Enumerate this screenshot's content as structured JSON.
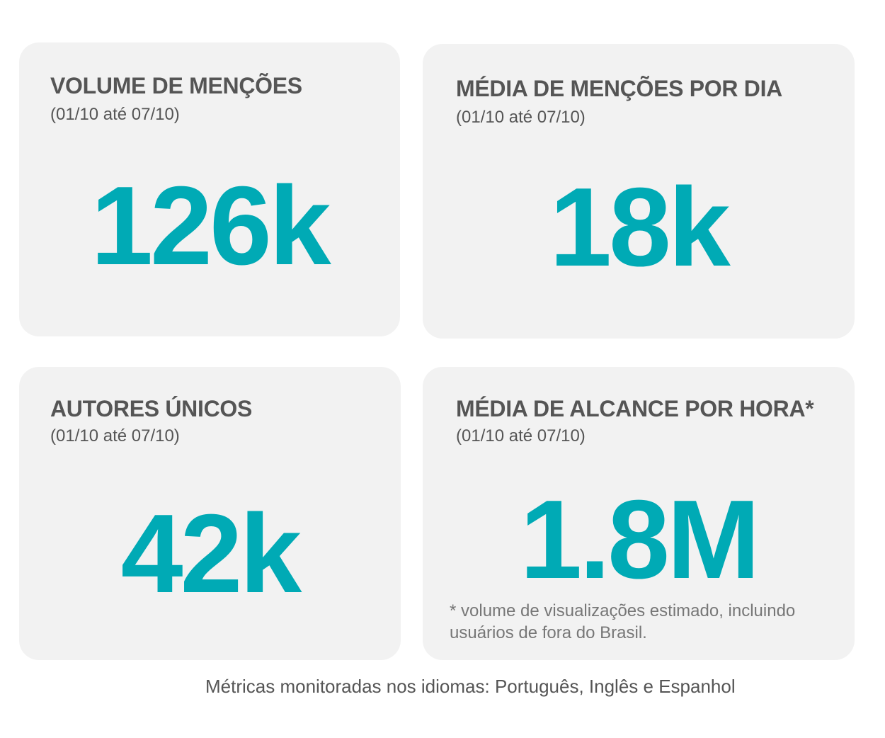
{
  "cards": [
    {
      "title": "VOLUME DE MENÇÕES",
      "subtitle": "(01/10 até 07/10)",
      "value": "126k"
    },
    {
      "title": "MÉDIA DE MENÇÕES POR DIA",
      "subtitle": "(01/10 até 07/10)",
      "value": "18k"
    },
    {
      "title": "AUTORES ÚNICOS",
      "subtitle": "(01/10 até 07/10)",
      "value": "42k"
    },
    {
      "title": "MÉDIA DE ALCANCE POR HORA*",
      "subtitle": "(01/10 até 07/10)",
      "value": "1.8M",
      "note": "* volume de visualizações estimado, incluindo usuários de fora do Brasil."
    }
  ],
  "footer": "Métricas monitoradas nos idiomas: Português, Inglês e Espanhol"
}
